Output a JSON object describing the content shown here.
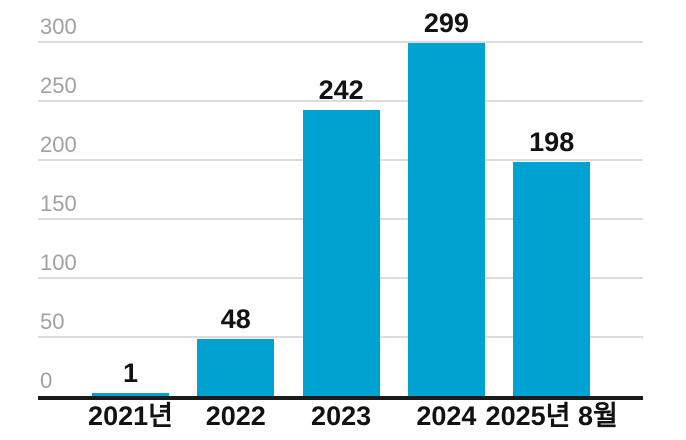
{
  "chart_data": {
    "type": "bar",
    "categories": [
      "2021년",
      "2022",
      "2023",
      "2024",
      "2025년 8월"
    ],
    "values": [
      1,
      48,
      242,
      299,
      198
    ],
    "value_labels": [
      "1",
      "48",
      "242",
      "299",
      "198"
    ],
    "title": "",
    "xlabel": "",
    "ylabel": "",
    "ylim": [
      0,
      300
    ],
    "yticks": [
      0,
      50,
      100,
      150,
      200,
      250,
      300
    ],
    "grid": true,
    "legend_position": "none",
    "colors": {
      "bar": "#00a2d1",
      "value_label": "#121212",
      "x_tick_label": "#121212",
      "y_tick_label": "#a1a1a1",
      "gridline": "#dcdcdc",
      "axis_line": "#1b1b1b",
      "background": "#ffffff"
    }
  }
}
